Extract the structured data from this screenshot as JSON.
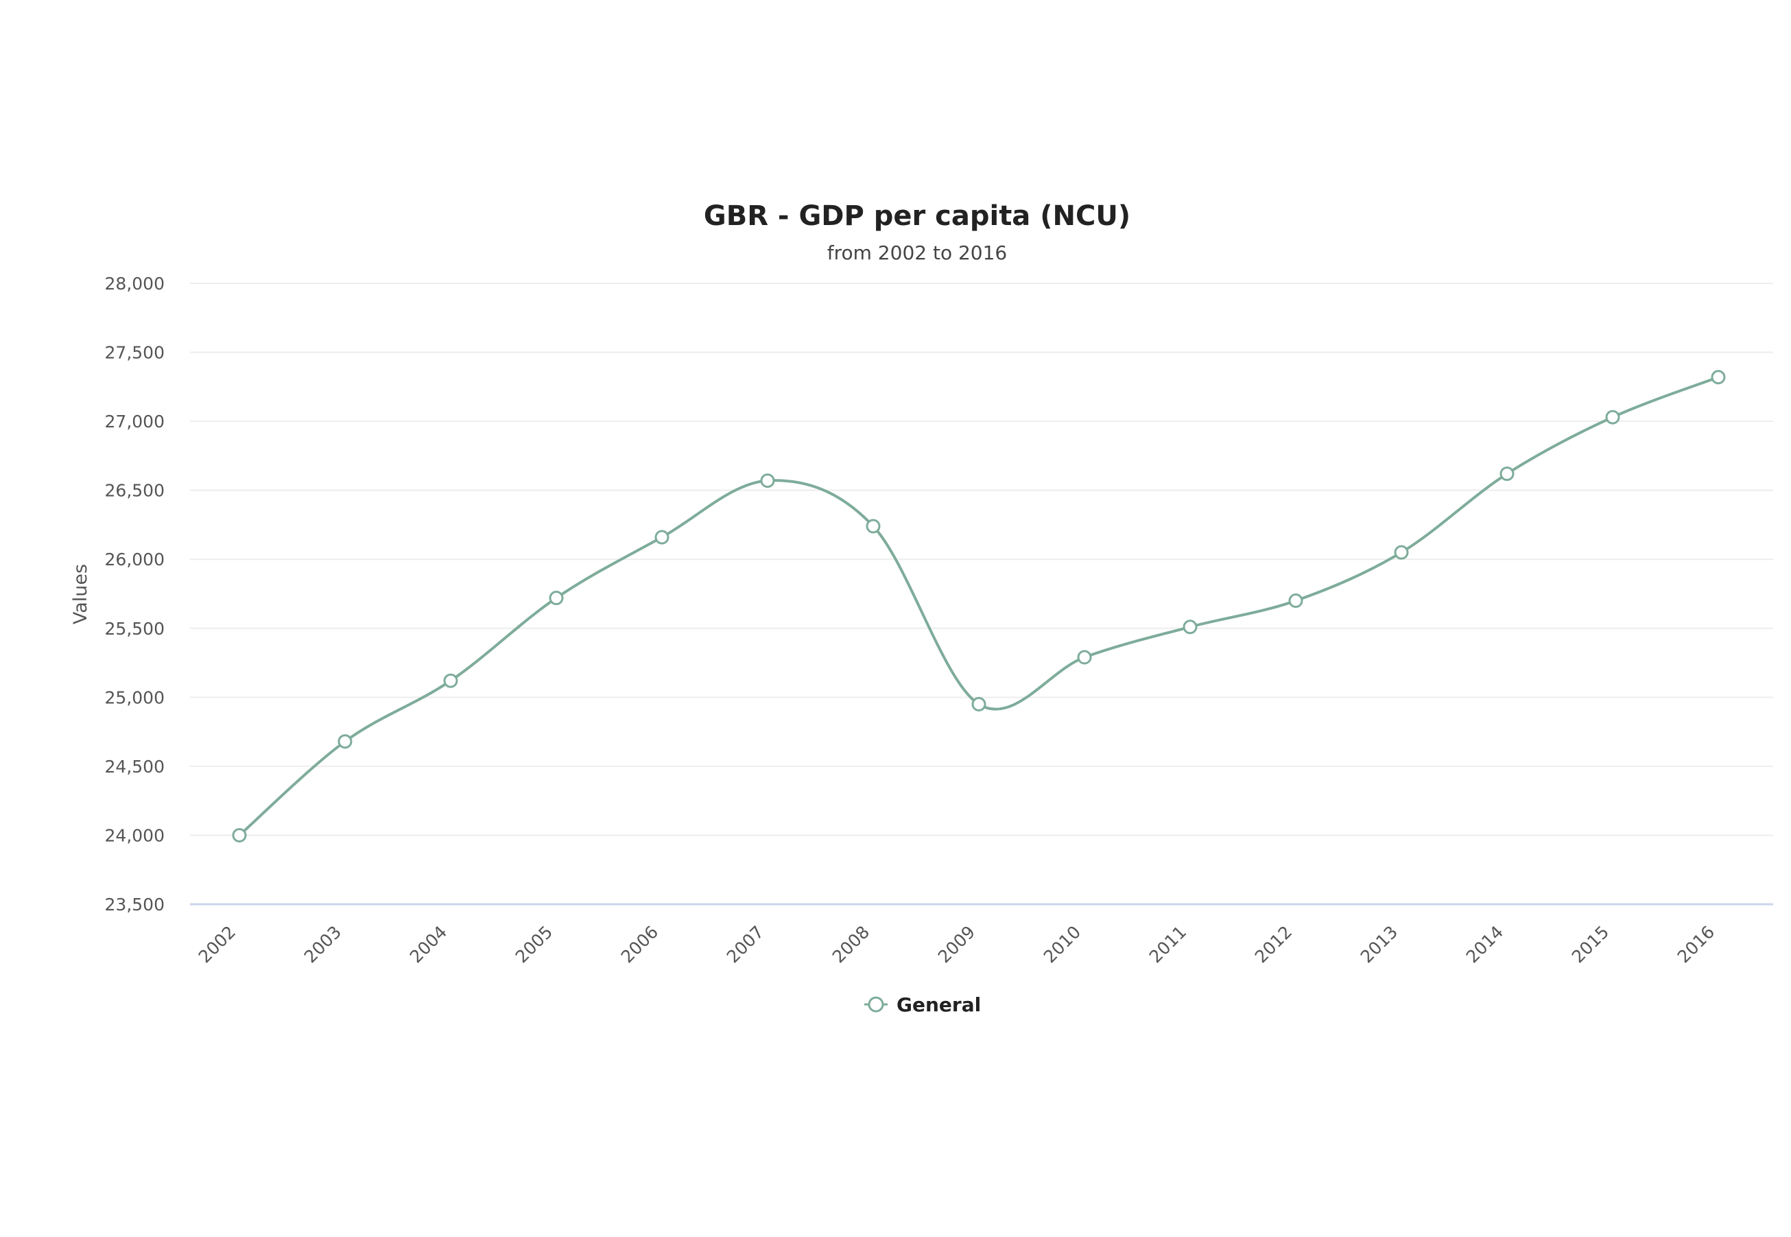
{
  "chart_data": {
    "type": "line",
    "title": "GBR - GDP per capita (NCU)",
    "subtitle": "from 2002 to 2016",
    "xlabel": "",
    "ylabel": "Values",
    "x": [
      "2002",
      "2003",
      "2004",
      "2005",
      "2006",
      "2007",
      "2008",
      "2009",
      "2010",
      "2011",
      "2012",
      "2013",
      "2014",
      "2015",
      "2016"
    ],
    "series": [
      {
        "name": "General",
        "color": "#7eac9a",
        "values": [
          24000,
          24680,
          25120,
          25720,
          26160,
          26570,
          26240,
          24950,
          25290,
          25510,
          25700,
          26050,
          26620,
          27030,
          27320
        ]
      }
    ],
    "ylim": [
      23500,
      28000
    ],
    "yticks": [
      "23,500",
      "24,000",
      "24,500",
      "25,000",
      "25,500",
      "26,000",
      "26,500",
      "27,000",
      "27,500",
      "28,000"
    ],
    "ytick_values": [
      23500,
      24000,
      24500,
      25000,
      25500,
      26000,
      26500,
      27000,
      27500,
      28000
    ],
    "grid": true,
    "smooth": true,
    "legend_position": "bottom-center",
    "marker": "hollow-circle"
  }
}
